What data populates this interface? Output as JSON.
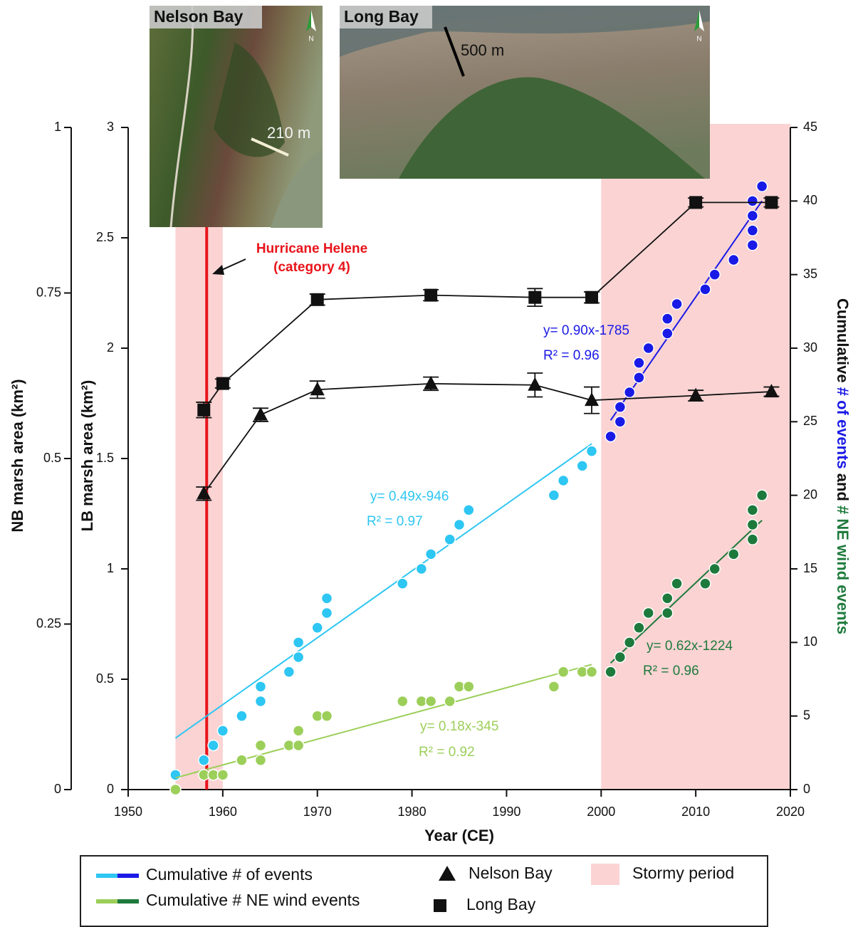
{
  "chart_data": {
    "type": "scatter",
    "xlabel": "Year (CE)",
    "ylabel": "LB marsh area (km²)",
    "y3label": "NB marsh area (km²)",
    "y2label_parts": [
      {
        "text": "Cumulative ",
        "color": "#111111"
      },
      {
        "text": "# of events",
        "color": "#1a1ae6"
      },
      {
        "text": " and ",
        "color": "#111111"
      },
      {
        "text": "# NE wind events",
        "color": "#1e7a3c"
      }
    ],
    "xlim": [
      1950,
      2020
    ],
    "xticks": [
      1950,
      1960,
      1970,
      1980,
      1990,
      2000,
      2010,
      2020
    ],
    "ylim": [
      0,
      3
    ],
    "yticks": [
      0,
      0.5,
      1,
      1.5,
      2,
      2.5,
      3
    ],
    "y3lim": [
      0,
      1
    ],
    "y3ticks": [
      0,
      0.25,
      0.5,
      0.75,
      1
    ],
    "y2lim": [
      0,
      45
    ],
    "y2ticks": [
      0,
      5,
      10,
      15,
      20,
      25,
      30,
      35,
      40,
      45
    ],
    "stormy": {
      "name": "Stormy period",
      "color": "#fbd3d3",
      "ranges": [
        [
          1955,
          1960
        ],
        [
          2000,
          2020
        ]
      ]
    },
    "hurricane": {
      "x": 1958.3,
      "color": "#e8141b",
      "label_lines": [
        "Hurricane Helene",
        "(category 4)"
      ]
    },
    "marsh_series": [
      {
        "name": "Long Bay",
        "marker": "square",
        "axis": "y",
        "color": "#111111",
        "x": [
          1958,
          1960,
          1970,
          1982,
          1993,
          1999,
          2010,
          2018
        ],
        "values": [
          1.72,
          1.84,
          2.22,
          2.24,
          2.23,
          2.23,
          2.66,
          2.66
        ],
        "errors": [
          0.035,
          0.02,
          0.025,
          0.025,
          0.04,
          0.025,
          0.02,
          0.02
        ]
      },
      {
        "name": "Nelson Bay",
        "marker": "triangle",
        "axis": "y3",
        "color": "#111111",
        "x": [
          1958,
          1964,
          1970,
          1982,
          1993,
          1999,
          2010,
          2018
        ],
        "values": [
          0.447,
          0.566,
          0.604,
          0.613,
          0.611,
          0.588,
          0.595,
          0.601
        ],
        "errors": [
          0.01,
          0.01,
          0.013,
          0.01,
          0.018,
          0.02,
          0.008,
          0.007
        ]
      }
    ],
    "event_series": [
      {
        "name": "Cumulative # of events",
        "axis": "y2",
        "groups": [
          {
            "color": "#2ec6f2",
            "x": [
              1955,
              1958,
              1959,
              1960,
              1962,
              1964,
              1964,
              1967,
              1968,
              1968,
              1970,
              1971,
              1971,
              1979,
              1981,
              1982,
              1984,
              1985,
              1986,
              1995,
              1996,
              1998,
              1999
            ],
            "values": [
              1,
              2,
              3,
              4,
              5,
              6,
              7,
              8,
              9,
              10,
              11,
              12,
              13,
              14,
              15,
              16,
              17,
              18,
              19,
              20,
              21,
              22,
              23
            ],
            "fit": {
              "x": [
                1955,
                1999
              ],
              "values": [
                3.5,
                23.5
              ],
              "equation": "y= 0.49x-946",
              "r2": "R² = 0.97"
            }
          },
          {
            "color": "#1a1ae6",
            "x": [
              2001,
              2002,
              2002,
              2003,
              2004,
              2004,
              2005,
              2007,
              2007,
              2008,
              2011,
              2012,
              2014,
              2016,
              2016,
              2016,
              2016,
              2017
            ],
            "values": [
              24,
              25,
              26,
              27,
              28,
              29,
              30,
              31,
              32,
              33,
              34,
              35,
              36,
              37,
              38,
              39,
              40,
              41
            ],
            "fit": {
              "x": [
                2001,
                2017
              ],
              "values": [
                25.1,
                40
              ],
              "equation": "y= 0.90x-1785",
              "r2": "R² = 0.96"
            }
          }
        ]
      },
      {
        "name": "Cumulative # NE wind events",
        "axis": "y2",
        "groups": [
          {
            "color": "#9ccf5a",
            "x": [
              1955,
              1958,
              1959,
              1960,
              1962,
              1964,
              1964,
              1967,
              1968,
              1968,
              1970,
              1971,
              1979,
              1981,
              1982,
              1984,
              1985,
              1986,
              1995,
              1996,
              1998,
              1999
            ],
            "values": [
              0,
              1,
              1,
              1,
              2,
              2,
              3,
              3,
              3,
              4,
              5,
              5,
              6,
              6,
              6,
              6,
              7,
              7,
              7,
              8,
              8,
              8
            ],
            "fit": {
              "x": [
                1955,
                1999
              ],
              "values": [
                0.8,
                8.5
              ],
              "equation": "y= 0.18x-345",
              "r2": "R² = 0.92"
            }
          },
          {
            "color": "#1e7a3c",
            "x": [
              2001,
              2002,
              2003,
              2004,
              2005,
              2007,
              2007,
              2008,
              2011,
              2012,
              2014,
              2016,
              2016,
              2016,
              2017
            ],
            "values": [
              8,
              9,
              10,
              11,
              12,
              12,
              13,
              14,
              14,
              15,
              16,
              17,
              18,
              19,
              20
            ],
            "fit": {
              "x": [
                2001,
                2017
              ],
              "values": [
                8.6,
                18.3
              ],
              "equation": "y= 0.62x-1224",
              "r2": "R² = 0.96"
            }
          }
        ]
      }
    ]
  },
  "insets": [
    {
      "title": "Nelson Bay",
      "scale": "210 m",
      "north": "N"
    },
    {
      "title": "Long Bay",
      "scale": "500 m",
      "north": "N"
    }
  ]
}
